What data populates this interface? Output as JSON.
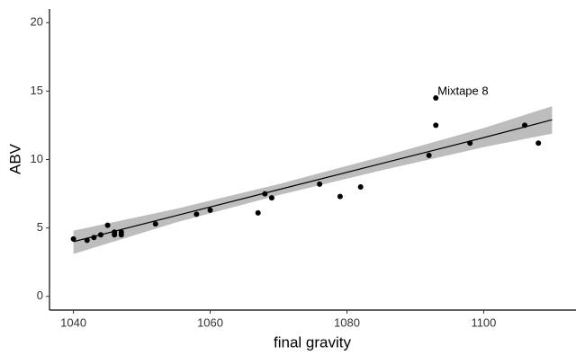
{
  "chart_data": {
    "type": "scatter",
    "x_label": "final gravity",
    "y_label": "ABV",
    "xlim": [
      1036.5,
      1113.5
    ],
    "ylim": [
      -1,
      21
    ],
    "xticks": [
      1040,
      1060,
      1080,
      1100
    ],
    "yticks": [
      0,
      5,
      10,
      15,
      20
    ],
    "grid": false,
    "series": [
      {
        "color": "#000000",
        "x": [
          1040,
          1042,
          1043,
          1044,
          1045,
          1046,
          1046,
          1047,
          1047,
          1052,
          1058,
          1060,
          1067,
          1068,
          1069,
          1076,
          1079,
          1082,
          1092,
          1093,
          1093,
          1098,
          1106,
          1108
        ],
        "values": [
          4.2,
          4.1,
          4.3,
          4.5,
          5.2,
          4.7,
          4.5,
          4.7,
          4.5,
          5.3,
          6.0,
          6.3,
          6.1,
          7.5,
          7.2,
          8.2,
          7.3,
          8.0,
          10.3,
          14.5,
          12.5,
          11.2,
          12.5,
          11.2
        ]
      }
    ],
    "fit": {
      "color": "#000000",
      "band_color": "#bdbdbd",
      "x": [
        1040,
        1055,
        1070,
        1085,
        1100,
        1110
      ],
      "values": [
        4.0,
        5.9,
        7.8,
        9.7,
        11.6,
        12.9
      ],
      "lower": [
        3.1,
        5.4,
        7.4,
        9.2,
        10.9,
        11.9
      ],
      "upper": [
        4.8,
        6.4,
        8.2,
        10.2,
        12.3,
        13.9
      ]
    },
    "annotations": [
      {
        "text": "Mixtape 8",
        "x": 1093,
        "y": 14.5
      }
    ]
  }
}
